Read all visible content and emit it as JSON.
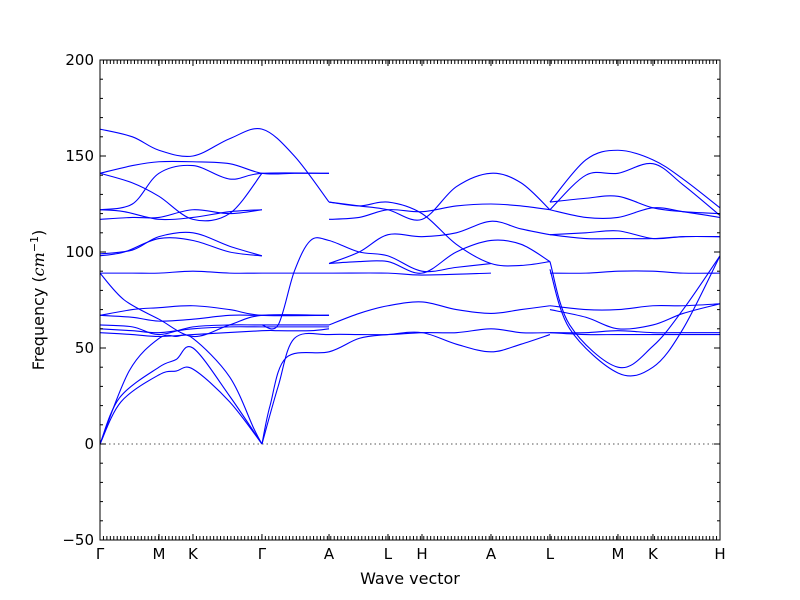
{
  "chart_data": {
    "type": "line",
    "xlabel": "Wave vector",
    "ylabel_text": "Frequency (",
    "ylabel_unit": "cm",
    "ylabel_exp": "−1",
    "ylabel_close": ")",
    "ylim": [
      -50,
      200
    ],
    "xlim": [
      0,
      3.828
    ],
    "y_ticks": [
      {
        "value": -50,
        "label": "−50"
      },
      {
        "value": 0,
        "label": "0"
      },
      {
        "value": 50,
        "label": "50"
      },
      {
        "value": 100,
        "label": "100"
      },
      {
        "value": 150,
        "label": "150"
      },
      {
        "value": 200,
        "label": "200"
      }
    ],
    "x_ticks": [
      {
        "value": 0.0,
        "label": "Γ"
      },
      {
        "value": 0.364,
        "label": "M"
      },
      {
        "value": 0.574,
        "label": "K"
      },
      {
        "value": 1.0,
        "label": "Γ"
      },
      {
        "value": 1.414,
        "label": "A"
      },
      {
        "value": 1.778,
        "label": "L"
      },
      {
        "value": 1.988,
        "label": "H"
      },
      {
        "value": 2.414,
        "label": "A"
      },
      {
        "value": 2.778,
        "label": "L"
      },
      {
        "value": 3.198,
        "label": "M"
      },
      {
        "value": 3.414,
        "label": "K"
      },
      {
        "value": 3.828,
        "label": "H"
      }
    ],
    "zero_line": 0,
    "series": [
      {
        "x": [
          0,
          0.13,
          0.364,
          0.47,
          0.574,
          0.8,
          1.0
        ],
        "y": [
          0,
          22,
          36,
          38,
          39,
          22,
          0
        ]
      },
      {
        "x": [
          0,
          0.12,
          0.364,
          0.47,
          0.574,
          0.8,
          1.0
        ],
        "y": [
          0,
          24,
          40,
          44,
          50,
          25,
          0
        ]
      },
      {
        "x": [
          0,
          0.18,
          0.364,
          0.47,
          0.574,
          0.8,
          0.95,
          1.0
        ],
        "y": [
          0,
          38,
          55,
          56,
          55,
          35,
          8,
          0
        ]
      },
      {
        "x": [
          0,
          0.2,
          0.364,
          0.574,
          1.0,
          1.1,
          1.3,
          1.414
        ],
        "y": [
          58,
          57,
          56,
          57,
          59,
          59,
          59,
          60
        ]
      },
      {
        "x": [
          0,
          0.2,
          0.364,
          0.574,
          0.8,
          1.0,
          1.414
        ],
        "y": [
          60,
          59,
          58,
          60,
          61,
          61,
          61
        ]
      },
      {
        "x": [
          0,
          0.2,
          0.364,
          0.574,
          0.8,
          1.0,
          1.414
        ],
        "y": [
          62,
          61,
          57,
          61,
          62,
          62,
          62
        ]
      },
      {
        "x": [
          0,
          0.2,
          0.364,
          0.574,
          0.8,
          1.0,
          1.414
        ],
        "y": [
          67,
          66,
          64,
          65,
          67,
          67,
          67
        ]
      },
      {
        "x": [
          0,
          0.2,
          0.364,
          0.574,
          0.8,
          1.0,
          1.414
        ],
        "y": [
          67,
          70,
          71,
          72,
          70,
          67,
          67
        ]
      },
      {
        "x": [
          0,
          0.15,
          0.364,
          0.574,
          0.8,
          1.0,
          1.414
        ],
        "y": [
          89,
          75,
          65,
          56,
          62,
          67,
          67
        ]
      },
      {
        "x": [
          0,
          0.2,
          0.364,
          0.574,
          0.8,
          1.0,
          1.414,
          1.778,
          1.988,
          2.414
        ],
        "y": [
          89,
          89,
          89,
          90,
          89,
          89,
          89,
          89,
          88,
          89
        ]
      },
      {
        "x": [
          0,
          0.15,
          0.364,
          0.574,
          0.8,
          1.0
        ],
        "y": [
          98,
          100,
          107,
          106,
          100,
          98
        ]
      },
      {
        "x": [
          0,
          0.2,
          0.364,
          0.574,
          0.8,
          1.0
        ],
        "y": [
          99,
          101,
          108,
          110,
          103,
          98
        ]
      },
      {
        "x": [
          0,
          0.2,
          0.364,
          0.574,
          0.8,
          1.0
        ],
        "y": [
          117,
          118,
          118,
          122,
          120,
          122
        ]
      },
      {
        "x": [
          0,
          0.15,
          0.364,
          0.574,
          0.8,
          1.0
        ],
        "y": [
          122,
          121,
          117,
          118,
          121,
          122
        ]
      },
      {
        "x": [
          0,
          0.2,
          0.364,
          0.574,
          0.8,
          1.0,
          1.414
        ],
        "y": [
          122,
          125,
          141,
          145,
          138,
          141,
          141
        ]
      },
      {
        "x": [
          0,
          0.2,
          0.364,
          0.574,
          0.8,
          1.0
        ],
        "y": [
          141,
          136,
          129,
          117,
          120,
          141
        ]
      },
      {
        "x": [
          0,
          0.2,
          0.364,
          0.574,
          0.8,
          1.0,
          1.2,
          1.414
        ],
        "y": [
          141,
          145,
          147,
          147,
          146,
          141,
          141,
          141
        ]
      },
      {
        "x": [
          0,
          0.2,
          0.364,
          0.574,
          0.8,
          1.0,
          1.2,
          1.414
        ],
        "y": [
          164,
          160,
          153,
          150,
          159,
          164,
          150,
          126
        ]
      },
      {
        "x": [
          1.0,
          1.05,
          1.15,
          1.414,
          1.6,
          1.778,
          1.988,
          2.2,
          2.414,
          2.6,
          2.778
        ],
        "y": [
          0,
          20,
          45,
          48,
          55,
          57,
          58,
          52,
          48,
          52,
          57
        ]
      },
      {
        "x": [
          1.0,
          1.1,
          1.2,
          1.414,
          1.6,
          1.778,
          1.988,
          2.2,
          2.414,
          2.6,
          2.778
        ],
        "y": [
          0,
          30,
          55,
          57,
          57,
          57,
          58,
          58,
          60,
          58,
          58
        ]
      },
      {
        "x": [
          1.0,
          1.1,
          1.2,
          1.3,
          1.414,
          1.6,
          1.778,
          1.988,
          2.2,
          2.414
        ],
        "y": [
          62,
          62,
          90,
          106,
          106,
          100,
          98,
          90,
          92,
          94
        ]
      },
      {
        "x": [
          1.414,
          1.6,
          1.778,
          1.988,
          2.2,
          2.414,
          2.6,
          2.778
        ],
        "y": [
          62,
          68,
          72,
          74,
          70,
          68,
          70,
          72
        ]
      },
      {
        "x": [
          1.414,
          1.6,
          1.778,
          1.988,
          2.2,
          2.414,
          2.6,
          2.778
        ],
        "y": [
          94,
          100,
          109,
          108,
          110,
          116,
          112,
          109
        ]
      },
      {
        "x": [
          1.414,
          1.6,
          1.778,
          1.988,
          2.2,
          2.414,
          2.6,
          2.778
        ],
        "y": [
          117,
          118,
          122,
          121,
          124,
          125,
          124,
          122
        ]
      },
      {
        "x": [
          1.414,
          1.6,
          1.778,
          1.988,
          2.2,
          2.414,
          2.6,
          2.778
        ],
        "y": [
          126,
          124,
          126,
          120,
          104,
          94,
          93,
          95
        ]
      },
      {
        "x": [
          1.414,
          1.6,
          1.778,
          1.988,
          2.2,
          2.414,
          2.6,
          2.778
        ],
        "y": [
          126,
          124,
          122,
          117,
          134,
          141,
          136,
          122
        ]
      },
      {
        "x": [
          1.414,
          1.6,
          1.778,
          1.988,
          2.2,
          2.414,
          2.6,
          2.778
        ],
        "y": [
          94,
          95,
          95,
          89,
          100,
          106,
          104,
          95
        ]
      },
      {
        "x": [
          2.778,
          2.9,
          3.198,
          3.414,
          3.6,
          3.828
        ],
        "y": [
          91,
          60,
          37,
          40,
          60,
          98
        ]
      },
      {
        "x": [
          2.778,
          2.9,
          3.198,
          3.414,
          3.6,
          3.828
        ],
        "y": [
          95,
          62,
          40,
          51,
          70,
          98
        ]
      },
      {
        "x": [
          2.778,
          3.0,
          3.198,
          3.414,
          3.6,
          3.828
        ],
        "y": [
          58,
          57,
          57,
          57,
          57,
          57
        ]
      },
      {
        "x": [
          2.778,
          3.0,
          3.198,
          3.414,
          3.6,
          3.828
        ],
        "y": [
          58,
          58,
          59,
          58,
          58,
          58
        ]
      },
      {
        "x": [
          2.778,
          3.0,
          3.198,
          3.414,
          3.6,
          3.828
        ],
        "y": [
          70,
          66,
          60,
          62,
          68,
          73
        ]
      },
      {
        "x": [
          2.778,
          3.0,
          3.198,
          3.414,
          3.6,
          3.828
        ],
        "y": [
          72,
          70,
          70,
          72,
          72,
          73
        ]
      },
      {
        "x": [
          2.778,
          3.0,
          3.198,
          3.414,
          3.6,
          3.828
        ],
        "y": [
          89,
          89,
          90,
          90,
          89,
          89
        ]
      },
      {
        "x": [
          2.778,
          3.0,
          3.198,
          3.414,
          3.6,
          3.828
        ],
        "y": [
          109,
          110,
          111,
          107,
          108,
          108
        ]
      },
      {
        "x": [
          2.778,
          3.0,
          3.198,
          3.414,
          3.6,
          3.828
        ],
        "y": [
          109,
          107,
          107,
          107,
          108,
          108
        ]
      },
      {
        "x": [
          2.778,
          3.0,
          3.198,
          3.414,
          3.6,
          3.828
        ],
        "y": [
          122,
          118,
          118,
          123,
          121,
          118
        ]
      },
      {
        "x": [
          2.778,
          3.0,
          3.198,
          3.414,
          3.6,
          3.828
        ],
        "y": [
          122,
          140,
          141,
          146,
          135,
          119
        ]
      },
      {
        "x": [
          2.778,
          3.0,
          3.198,
          3.414,
          3.6,
          3.828
        ],
        "y": [
          126,
          128,
          129,
          123,
          121,
          120
        ]
      },
      {
        "x": [
          2.778,
          3.0,
          3.198,
          3.414,
          3.6,
          3.828
        ],
        "y": [
          126,
          148,
          153,
          148,
          138,
          123
        ]
      }
    ]
  }
}
